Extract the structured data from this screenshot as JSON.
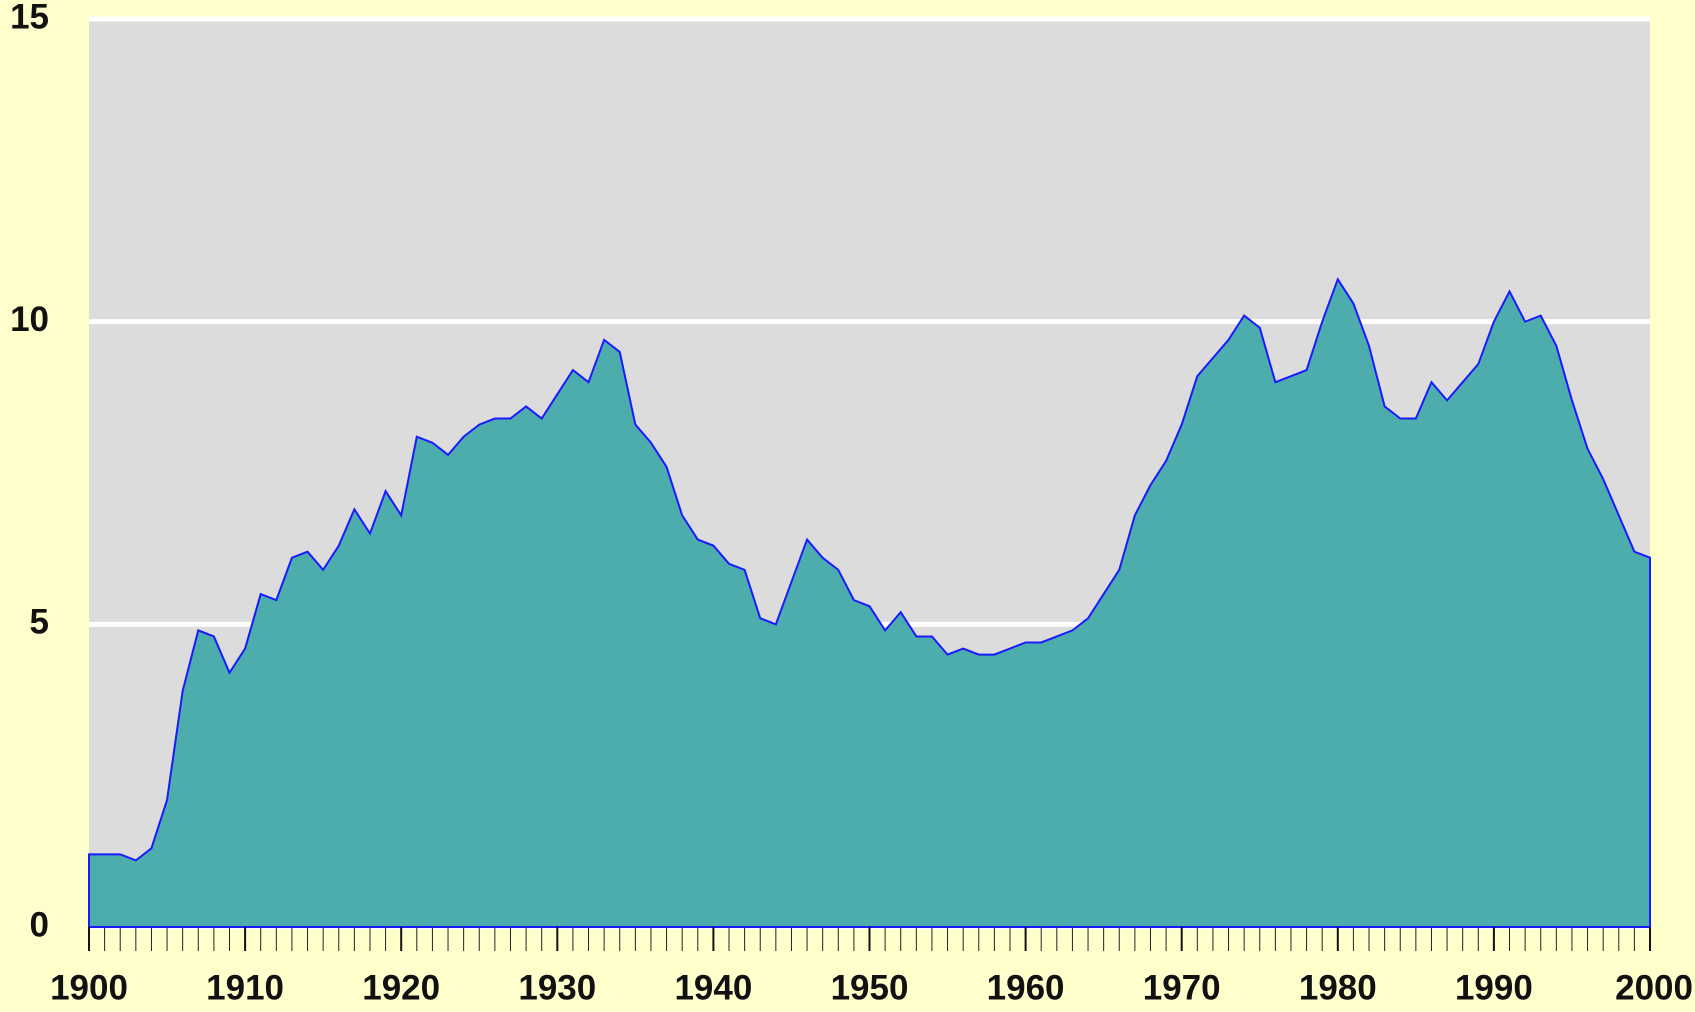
{
  "chart_data": {
    "type": "area",
    "x": [
      1900,
      1901,
      1902,
      1903,
      1904,
      1905,
      1906,
      1907,
      1908,
      1909,
      1910,
      1911,
      1912,
      1913,
      1914,
      1915,
      1916,
      1917,
      1918,
      1919,
      1920,
      1921,
      1922,
      1923,
      1924,
      1925,
      1926,
      1927,
      1928,
      1929,
      1930,
      1931,
      1932,
      1933,
      1934,
      1935,
      1936,
      1937,
      1938,
      1939,
      1940,
      1941,
      1942,
      1943,
      1944,
      1945,
      1946,
      1947,
      1948,
      1949,
      1950,
      1951,
      1952,
      1953,
      1954,
      1955,
      1956,
      1957,
      1958,
      1959,
      1960,
      1961,
      1962,
      1963,
      1964,
      1965,
      1966,
      1967,
      1968,
      1969,
      1970,
      1971,
      1972,
      1973,
      1974,
      1975,
      1976,
      1977,
      1978,
      1979,
      1980,
      1981,
      1982,
      1983,
      1984,
      1985,
      1986,
      1987,
      1988,
      1989,
      1990,
      1991,
      1992,
      1993,
      1994,
      1995,
      1996,
      1997,
      1998,
      1999,
      2000
    ],
    "values": [
      1.2,
      1.2,
      1.2,
      1.1,
      1.3,
      2.1,
      3.9,
      4.9,
      4.8,
      4.2,
      4.6,
      5.5,
      5.4,
      6.1,
      6.2,
      5.9,
      6.3,
      6.9,
      6.5,
      7.2,
      6.8,
      8.1,
      8.0,
      7.8,
      8.1,
      8.3,
      8.4,
      8.4,
      8.6,
      8.4,
      8.8,
      9.2,
      9.0,
      9.7,
      9.5,
      8.3,
      8.0,
      7.6,
      6.8,
      6.4,
      6.3,
      6.0,
      5.9,
      5.1,
      5.0,
      5.7,
      6.4,
      6.1,
      5.9,
      5.4,
      5.3,
      4.9,
      5.2,
      4.8,
      4.8,
      4.5,
      4.6,
      4.5,
      4.5,
      4.6,
      4.7,
      4.7,
      4.8,
      4.9,
      5.1,
      5.5,
      5.9,
      6.8,
      7.3,
      7.7,
      8.3,
      9.1,
      9.4,
      9.7,
      10.1,
      9.9,
      9.0,
      9.1,
      9.2,
      10.0,
      10.7,
      10.3,
      9.6,
      8.6,
      8.4,
      8.4,
      9.0,
      8.7,
      9.0,
      9.3,
      10.0,
      10.5,
      10.0,
      10.1,
      9.6,
      8.7,
      7.9,
      7.4,
      6.8,
      6.2,
      6.1
    ],
    "fill_color": "#4dadad",
    "line_color": "#1a1aff",
    "xlim": [
      1900,
      2000
    ],
    "xticks": [
      1900,
      1910,
      1920,
      1930,
      1940,
      1950,
      1960,
      1970,
      1980,
      1990,
      2000
    ],
    "ylim": [
      0,
      15
    ],
    "yticks": [
      0,
      5,
      10,
      15
    ],
    "grid": true
  }
}
